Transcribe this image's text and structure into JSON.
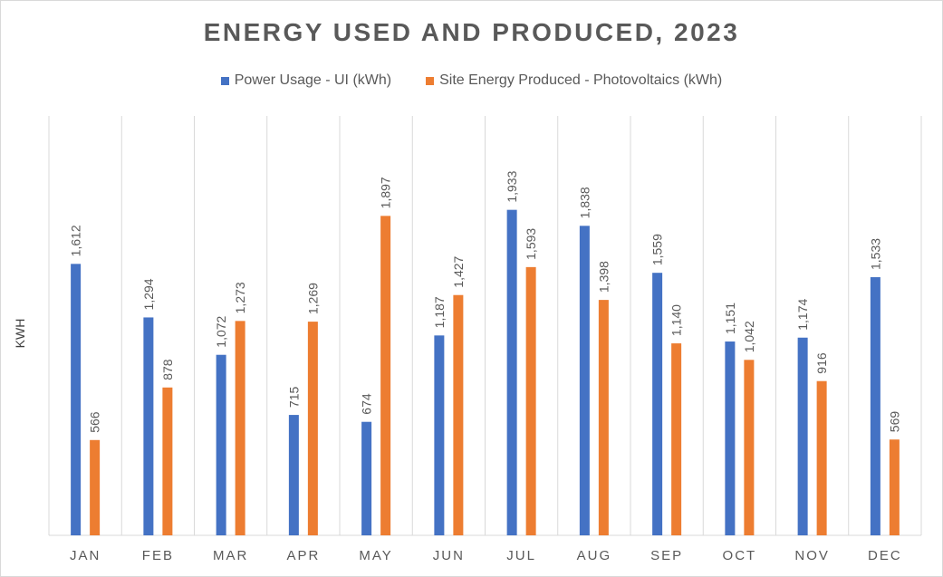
{
  "chart_data": {
    "type": "bar",
    "title": "ENERGY USED AND PRODUCED, 2023",
    "ylabel": "KWH",
    "xlabel": "",
    "categories": [
      "JAN",
      "FEB",
      "MAR",
      "APR",
      "MAY",
      "JUN",
      "JUL",
      "AUG",
      "SEP",
      "OCT",
      "NOV",
      "DEC"
    ],
    "series": [
      {
        "name": "Power Usage - UI (kWh)",
        "color": "#4472c4",
        "values": [
          1612,
          1294,
          1072,
          715,
          674,
          1187,
          1933,
          1838,
          1559,
          1151,
          1174,
          1533
        ],
        "labels": [
          "1,612",
          "1,294",
          "1,072",
          "715",
          "674",
          "1,187",
          "1,933",
          "1,838",
          "1,559",
          "1,151",
          "1,174",
          "1,533"
        ]
      },
      {
        "name": "Site Energy Produced - Photovoltaics (kWh)",
        "color": "#ed7d31",
        "values": [
          566,
          878,
          1273,
          1269,
          1897,
          1427,
          1593,
          1398,
          1140,
          1042,
          916,
          569
        ],
        "labels": [
          "566",
          "878",
          "1,273",
          "1,269",
          "1,897",
          "1,427",
          "1,593",
          "1,398",
          "1,140",
          "1,042",
          "916",
          "569"
        ]
      }
    ],
    "ylim": [
      0,
      2400
    ],
    "grid": "vertical separators between categories",
    "legend_position": "top-center"
  }
}
